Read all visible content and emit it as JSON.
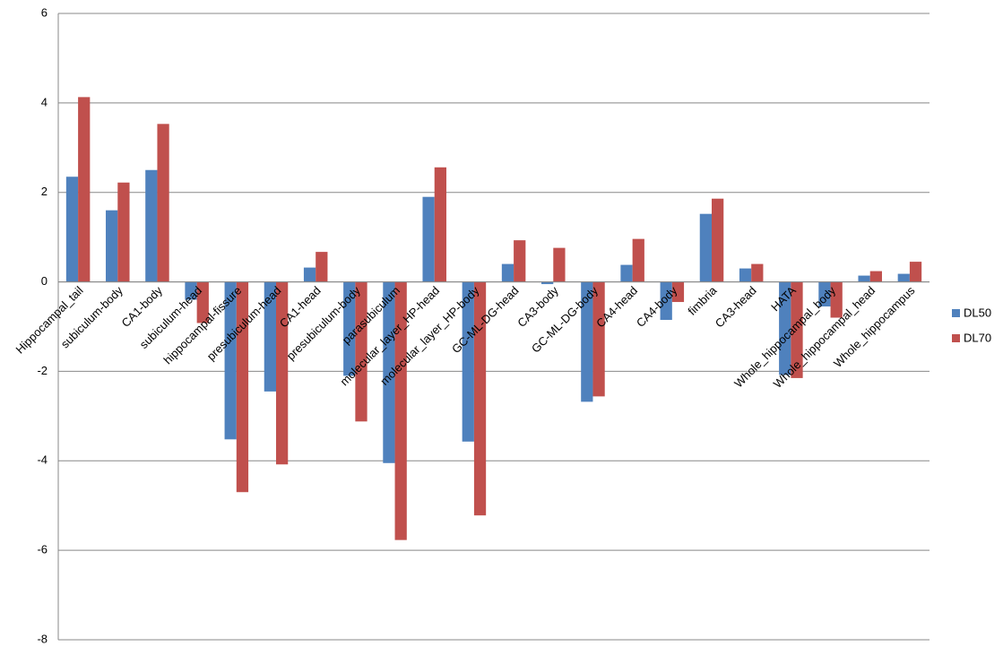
{
  "chart_data": {
    "type": "bar",
    "categories": [
      "Hippocampal_tail",
      "subiculum-body",
      "CA1-body",
      "subiculum-head",
      "hippocampal-fissure",
      "presubiculum-head",
      "CA1-head",
      "presubiculum-body",
      "parasubiculum",
      "molecular_layer_HP-head",
      "molecular_layer_HP-body",
      "GC-ML-DG-head",
      "CA3-body",
      "GC-ML-DG-body",
      "CA4-head",
      "CA4-body",
      "fimbria",
      "CA3-head",
      "HATA",
      "Whole_hippocampal_body",
      "Whole_hippocampal_head",
      "Whole_hippocampus"
    ],
    "series": [
      {
        "name": "DL50",
        "color": "#4f81bd",
        "values": [
          2.35,
          1.6,
          2.5,
          -0.4,
          -3.52,
          -2.45,
          0.32,
          -2.1,
          -4.05,
          1.9,
          -3.57,
          0.4,
          -0.05,
          -2.68,
          0.38,
          -0.85,
          1.52,
          0.3,
          -2.08,
          -0.55,
          0.14,
          0.18
        ]
      },
      {
        "name": "DL70",
        "color": "#c0504d",
        "values": [
          4.13,
          2.22,
          3.53,
          -0.92,
          -4.7,
          -4.08,
          0.67,
          -3.12,
          -5.77,
          2.56,
          -5.22,
          0.93,
          0.76,
          -2.56,
          0.96,
          -0.45,
          1.86,
          0.4,
          -2.15,
          -0.8,
          0.24,
          0.45
        ]
      }
    ],
    "ylim": [
      -8,
      6
    ],
    "yticks": [
      -8,
      -6,
      -4,
      -2,
      0,
      2,
      4,
      6
    ],
    "grid": true,
    "legend": "right"
  }
}
